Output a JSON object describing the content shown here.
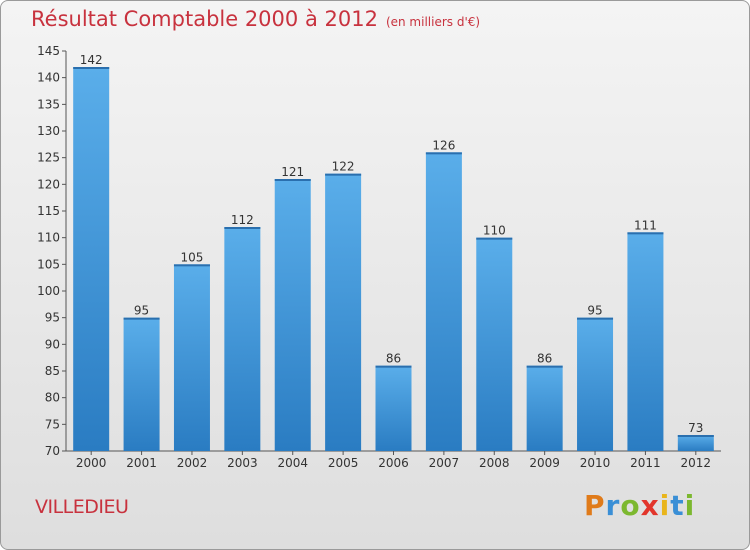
{
  "chart_data": {
    "type": "bar",
    "title": "Résultat Comptable 2000 à 2012",
    "subtitle": "(en milliers d'€)",
    "xlabel": "",
    "ylabel": "",
    "categories": [
      "2000",
      "2001",
      "2002",
      "2003",
      "2004",
      "2005",
      "2006",
      "2007",
      "2008",
      "2009",
      "2010",
      "2011",
      "2012"
    ],
    "values": [
      142,
      95,
      105,
      112,
      121,
      122,
      86,
      126,
      110,
      86,
      95,
      111,
      73
    ],
    "ylim": [
      70,
      145
    ],
    "yticks": [
      70,
      75,
      80,
      85,
      90,
      95,
      100,
      105,
      110,
      115,
      120,
      125,
      130,
      135,
      140,
      145
    ],
    "grid": false,
    "legend": "none",
    "bar_color": "#3f93d8"
  },
  "footer": {
    "commune": "VILLEDIEU",
    "brand_letters": [
      {
        "char": "P",
        "color": "#e07b1a"
      },
      {
        "char": "r",
        "color": "#3a8fd6"
      },
      {
        "char": "o",
        "color": "#7cb82f"
      },
      {
        "char": "x",
        "color": "#e2352b"
      },
      {
        "char": "i",
        "color": "#e9b51b"
      },
      {
        "char": "t",
        "color": "#3a8fd6"
      },
      {
        "char": "i",
        "color": "#7cb82f"
      }
    ]
  }
}
